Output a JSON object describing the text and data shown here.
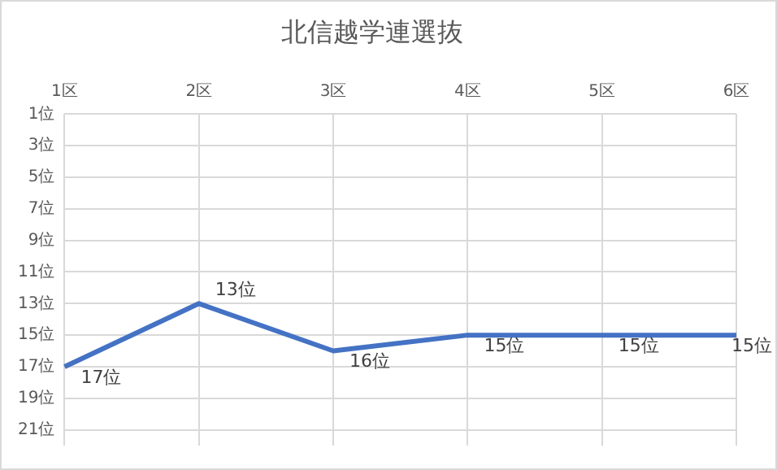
{
  "chart_data": {
    "type": "line",
    "title": "北信越学連選抜",
    "categories": [
      "1区",
      "2区",
      "3区",
      "4区",
      "5区",
      "6区"
    ],
    "series": [
      {
        "color": "#4472c4",
        "values": [
          17,
          13,
          16,
          15,
          15,
          15
        ],
        "value_labels": [
          "17位",
          "13位",
          "16位",
          "15位",
          "15位",
          "15位"
        ]
      }
    ],
    "ylim": [
      22,
      1
    ],
    "yticks": [
      {
        "value": 1,
        "label": "1位"
      },
      {
        "value": 3,
        "label": "3位"
      },
      {
        "value": 5,
        "label": "5位"
      },
      {
        "value": 7,
        "label": "7位"
      },
      {
        "value": 9,
        "label": "9位"
      },
      {
        "value": 11,
        "label": "11位"
      },
      {
        "value": 13,
        "label": "13位"
      },
      {
        "value": 15,
        "label": "15位"
      },
      {
        "value": 17,
        "label": "17位"
      },
      {
        "value": 19,
        "label": "19位"
      },
      {
        "value": 21,
        "label": "21位"
      }
    ],
    "grid": true,
    "legend": false,
    "marker": "none",
    "line_style": "solid"
  }
}
